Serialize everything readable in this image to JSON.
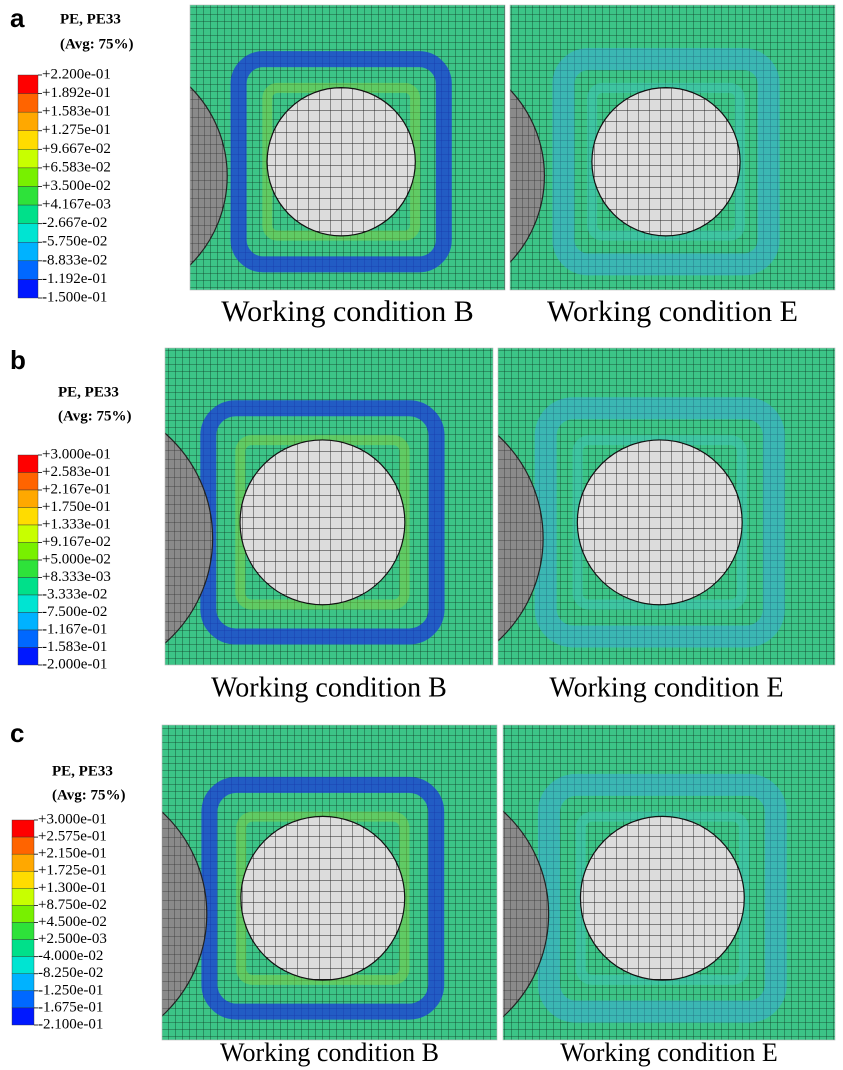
{
  "panels": [
    {
      "label": "a",
      "legend": {
        "title": "PE, PE33",
        "subtitle": "(Avg: 75%)",
        "labels": [
          "+2.200e-01",
          "+1.892e-01",
          "+1.583e-01",
          "+1.275e-01",
          "+9.667e-02",
          "+6.583e-02",
          "+3.500e-02",
          "+4.167e-03",
          "-2.667e-02",
          "-5.750e-02",
          "-8.833e-02",
          "-1.192e-01",
          "-1.500e-01"
        ]
      },
      "images": [
        {
          "caption": "Working condition B"
        },
        {
          "caption": "Working condition E"
        }
      ]
    },
    {
      "label": "b",
      "legend": {
        "title": "PE, PE33",
        "subtitle": "(Avg: 75%)",
        "labels": [
          "+3.000e-01",
          "+2.583e-01",
          "+2.167e-01",
          "+1.750e-01",
          "+1.333e-01",
          "+9.167e-02",
          "+5.000e-02",
          "+8.333e-03",
          "-3.333e-02",
          "-7.500e-02",
          "-1.167e-01",
          "-1.583e-01",
          "-2.000e-01"
        ]
      },
      "images": [
        {
          "caption": "Working condition B"
        },
        {
          "caption": "Working condition E"
        }
      ]
    },
    {
      "label": "c",
      "legend": {
        "title": "PE, PE33",
        "subtitle": "(Avg: 75%)",
        "labels": [
          "+3.000e-01",
          "+2.575e-01",
          "+2.150e-01",
          "+1.725e-01",
          "+1.300e-01",
          "+8.750e-02",
          "+4.500e-02",
          "+2.500e-03",
          "-4.000e-02",
          "-8.250e-02",
          "-1.250e-01",
          "-1.675e-01",
          "-2.100e-01"
        ]
      },
      "images": [
        {
          "caption": "Working condition B"
        },
        {
          "caption": "Working condition E"
        }
      ]
    }
  ]
}
